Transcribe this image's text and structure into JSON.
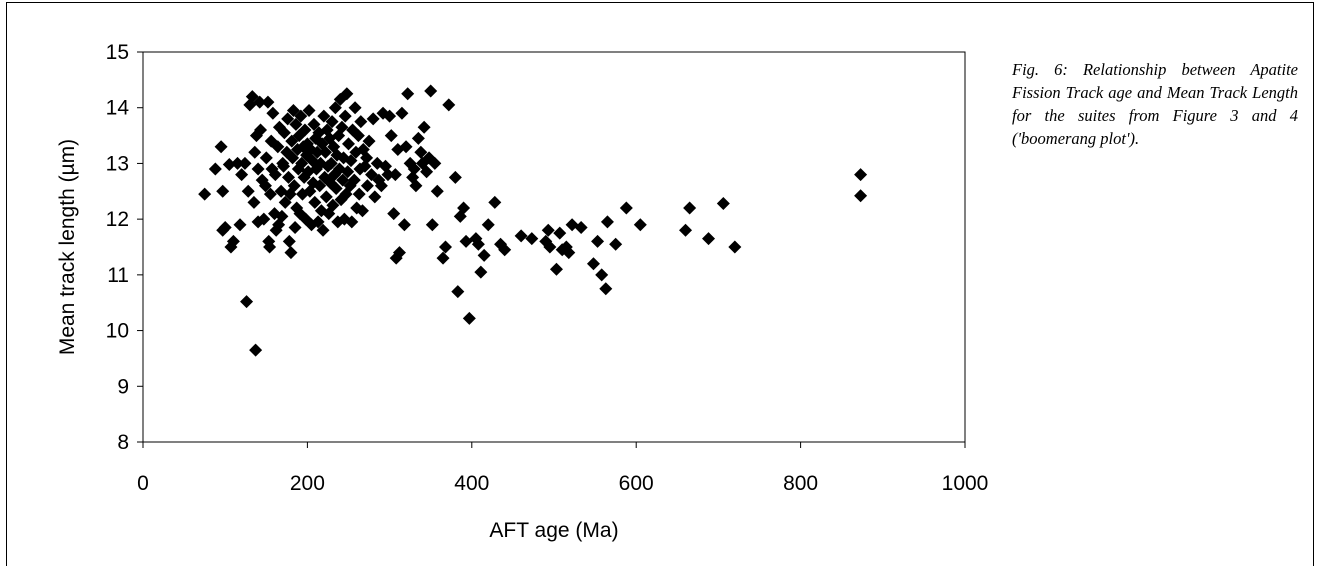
{
  "caption": "Fig. 6: Relationship between Apatite Fission Track age and Mean Track Length for the suites from Figure 3 and 4 ('boomerang plot').",
  "chart_data": {
    "type": "scatter",
    "xlabel": "AFT age (Ma)",
    "ylabel": "Mean track length (µm)",
    "xlim": [
      0,
      1000
    ],
    "ylim": [
      8,
      15
    ],
    "xticks": [
      0,
      200,
      400,
      600,
      800,
      1000
    ],
    "yticks": [
      8,
      9,
      10,
      11,
      12,
      13,
      14,
      15
    ],
    "grid": false,
    "marker": "diamond",
    "marker_color": "#000000",
    "points": [
      [
        75,
        12.45
      ],
      [
        88,
        12.9
      ],
      [
        95,
        13.3
      ],
      [
        97,
        12.5
      ],
      [
        97,
        11.8
      ],
      [
        100,
        11.85
      ],
      [
        105,
        12.98
      ],
      [
        107,
        11.5
      ],
      [
        110,
        11.6
      ],
      [
        115,
        13.0
      ],
      [
        118,
        11.9
      ],
      [
        120,
        12.8
      ],
      [
        124,
        13.0
      ],
      [
        126,
        10.52
      ],
      [
        128,
        12.5
      ],
      [
        130,
        14.05
      ],
      [
        133,
        14.2
      ],
      [
        135,
        12.3
      ],
      [
        136,
        13.2
      ],
      [
        137,
        9.65
      ],
      [
        138,
        13.5
      ],
      [
        140,
        12.9
      ],
      [
        140,
        11.95
      ],
      [
        142,
        14.1
      ],
      [
        143,
        13.6
      ],
      [
        145,
        12.7
      ],
      [
        147,
        12.0
      ],
      [
        149,
        12.6
      ],
      [
        150,
        13.1
      ],
      [
        152,
        14.1
      ],
      [
        153,
        11.6
      ],
      [
        154,
        11.5
      ],
      [
        155,
        12.45
      ],
      [
        156,
        13.4
      ],
      [
        157,
        12.9
      ],
      [
        158,
        13.9
      ],
      [
        160,
        12.1
      ],
      [
        161,
        12.8
      ],
      [
        162,
        11.8
      ],
      [
        164,
        13.3
      ],
      [
        165,
        11.9
      ],
      [
        166,
        13.65
      ],
      [
        168,
        12.5
      ],
      [
        169,
        12.05
      ],
      [
        170,
        13.0
      ],
      [
        171,
        12.95
      ],
      [
        172,
        13.55
      ],
      [
        173,
        12.3
      ],
      [
        175,
        13.2
      ],
      [
        176,
        13.8
      ],
      [
        177,
        12.75
      ],
      [
        178,
        11.6
      ],
      [
        179,
        12.45
      ],
      [
        180,
        11.4
      ],
      [
        181,
        13.4
      ],
      [
        182,
        13.1
      ],
      [
        183,
        13.95
      ],
      [
        184,
        12.6
      ],
      [
        185,
        11.85
      ],
      [
        186,
        13.7
      ],
      [
        187,
        12.2
      ],
      [
        188,
        13.25
      ],
      [
        189,
        12.9
      ],
      [
        190,
        13.5
      ],
      [
        191,
        12.1
      ],
      [
        192,
        13.85
      ],
      [
        193,
        13.0
      ],
      [
        194,
        12.45
      ],
      [
        195,
        13.3
      ],
      [
        196,
        12.75
      ],
      [
        197,
        13.6
      ],
      [
        198,
        12.0
      ],
      [
        199,
        13.15
      ],
      [
        200,
        13.35
      ],
      [
        201,
        12.85
      ],
      [
        202,
        13.95
      ],
      [
        203,
        12.5
      ],
      [
        204,
        13.25
      ],
      [
        205,
        11.9
      ],
      [
        206,
        13.05
      ],
      [
        207,
        12.65
      ],
      [
        208,
        13.7
      ],
      [
        209,
        12.3
      ],
      [
        210,
        13.45
      ],
      [
        211,
        12.9
      ],
      [
        212,
        13.2
      ],
      [
        213,
        11.95
      ],
      [
        214,
        13.55
      ],
      [
        215,
        12.6
      ],
      [
        216,
        13.0
      ],
      [
        217,
        12.15
      ],
      [
        218,
        13.35
      ],
      [
        219,
        11.8
      ],
      [
        220,
        13.85
      ],
      [
        221,
        12.75
      ],
      [
        222,
        13.2
      ],
      [
        223,
        12.4
      ],
      [
        224,
        13.6
      ],
      [
        225,
        12.95
      ],
      [
        226,
        12.1
      ],
      [
        227,
        13.45
      ],
      [
        228,
        12.65
      ],
      [
        229,
        13.0
      ],
      [
        230,
        13.75
      ],
      [
        231,
        12.25
      ],
      [
        232,
        13.3
      ],
      [
        233,
        12.8
      ],
      [
        234,
        14.0
      ],
      [
        235,
        12.55
      ],
      [
        236,
        13.15
      ],
      [
        237,
        11.95
      ],
      [
        238,
        13.5
      ],
      [
        239,
        12.9
      ],
      [
        240,
        14.15
      ],
      [
        241,
        12.35
      ],
      [
        242,
        13.65
      ],
      [
        243,
        12.7
      ],
      [
        244,
        13.1
      ],
      [
        245,
        12.0
      ],
      [
        246,
        13.85
      ],
      [
        247,
        12.45
      ],
      [
        248,
        14.25
      ],
      [
        249,
        12.85
      ],
      [
        250,
        13.35
      ],
      [
        252,
        12.6
      ],
      [
        253,
        13.05
      ],
      [
        254,
        11.95
      ],
      [
        255,
        13.6
      ],
      [
        257,
        12.7
      ],
      [
        258,
        14.0
      ],
      [
        259,
        13.2
      ],
      [
        260,
        12.2
      ],
      [
        262,
        13.5
      ],
      [
        263,
        12.45
      ],
      [
        264,
        12.9
      ],
      [
        265,
        13.75
      ],
      [
        267,
        12.15
      ],
      [
        268,
        13.25
      ],
      [
        270,
        12.95
      ],
      [
        272,
        13.1
      ],
      [
        273,
        12.6
      ],
      [
        275,
        13.4
      ],
      [
        278,
        12.8
      ],
      [
        280,
        13.8
      ],
      [
        282,
        12.4
      ],
      [
        285,
        13.0
      ],
      [
        287,
        12.7
      ],
      [
        290,
        12.6
      ],
      [
        292,
        13.9
      ],
      [
        295,
        12.95
      ],
      [
        298,
        12.8
      ],
      [
        300,
        13.85
      ],
      [
        302,
        13.5
      ],
      [
        305,
        12.1
      ],
      [
        307,
        12.8
      ],
      [
        308,
        11.3
      ],
      [
        310,
        13.25
      ],
      [
        312,
        11.4
      ],
      [
        315,
        13.9
      ],
      [
        318,
        11.9
      ],
      [
        320,
        13.3
      ],
      [
        322,
        14.25
      ],
      [
        325,
        13.0
      ],
      [
        328,
        12.75
      ],
      [
        330,
        12.9
      ],
      [
        332,
        12.6
      ],
      [
        335,
        13.45
      ],
      [
        338,
        13.2
      ],
      [
        340,
        13.0
      ],
      [
        342,
        13.65
      ],
      [
        345,
        12.85
      ],
      [
        348,
        13.1
      ],
      [
        350,
        14.3
      ],
      [
        352,
        11.9
      ],
      [
        355,
        13.0
      ],
      [
        358,
        12.5
      ],
      [
        365,
        11.3
      ],
      [
        368,
        11.5
      ],
      [
        372,
        14.05
      ],
      [
        380,
        12.75
      ],
      [
        383,
        10.7
      ],
      [
        386,
        12.05
      ],
      [
        390,
        12.2
      ],
      [
        393,
        11.6
      ],
      [
        397,
        10.22
      ],
      [
        405,
        11.65
      ],
      [
        408,
        11.55
      ],
      [
        411,
        11.05
      ],
      [
        415,
        11.35
      ],
      [
        420,
        11.9
      ],
      [
        428,
        12.3
      ],
      [
        435,
        11.55
      ],
      [
        440,
        11.45
      ],
      [
        460,
        11.7
      ],
      [
        473,
        11.65
      ],
      [
        490,
        11.6
      ],
      [
        493,
        11.8
      ],
      [
        495,
        11.5
      ],
      [
        503,
        11.1
      ],
      [
        507,
        11.75
      ],
      [
        510,
        11.45
      ],
      [
        515,
        11.5
      ],
      [
        518,
        11.4
      ],
      [
        522,
        11.9
      ],
      [
        533,
        11.85
      ],
      [
        548,
        11.2
      ],
      [
        553,
        11.6
      ],
      [
        558,
        11.0
      ],
      [
        563,
        10.75
      ],
      [
        565,
        11.95
      ],
      [
        575,
        11.55
      ],
      [
        588,
        12.2
      ],
      [
        605,
        11.9
      ],
      [
        660,
        11.8
      ],
      [
        665,
        12.2
      ],
      [
        688,
        11.65
      ],
      [
        706,
        12.28
      ],
      [
        720,
        11.5
      ],
      [
        873,
        12.8
      ],
      [
        873,
        12.42
      ]
    ]
  }
}
